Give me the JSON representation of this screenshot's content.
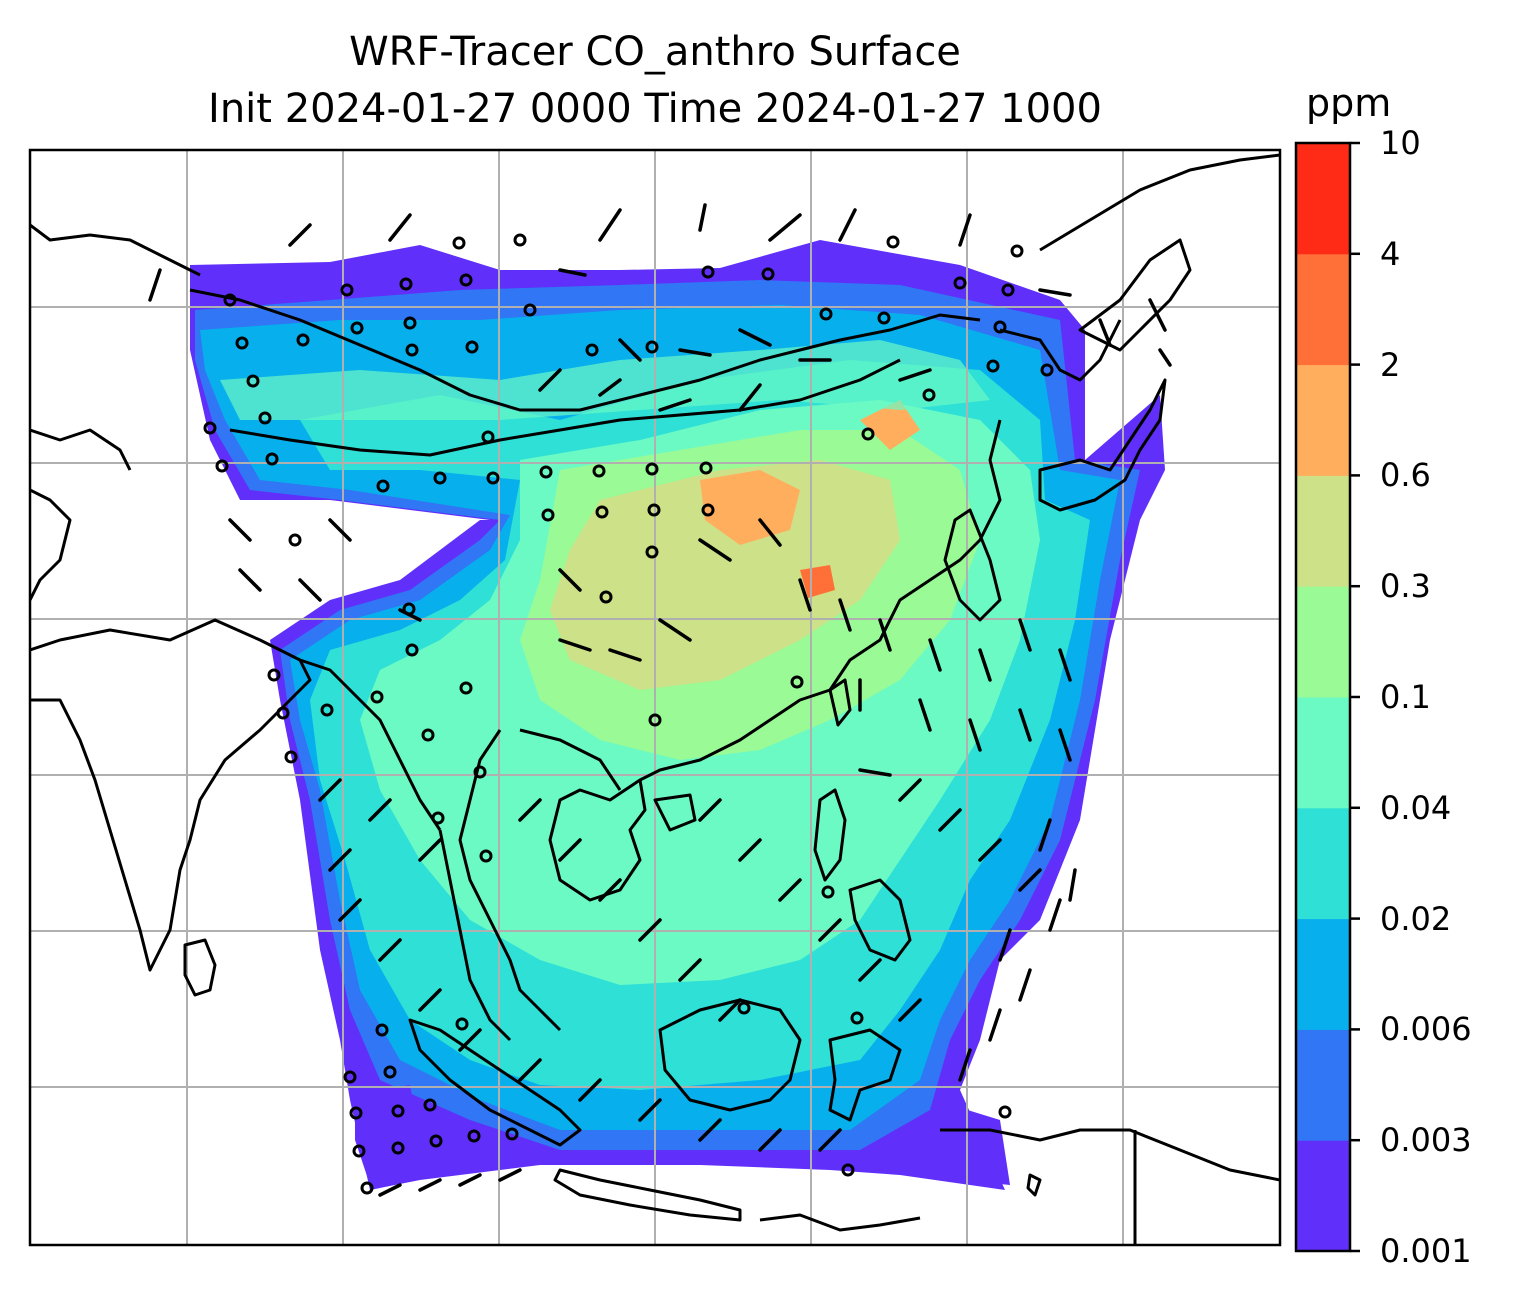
{
  "title": {
    "line1": "WRF-Tracer CO_anthro Surface",
    "line2": "Init 2024-01-27 0000 Time 2024-01-27 1000"
  },
  "colorbar": {
    "unit": "ppm",
    "levels": [
      "0.001",
      "0.003",
      "0.006",
      "0.02",
      "0.04",
      "0.1",
      "0.3",
      "0.6",
      "2",
      "4",
      "10"
    ],
    "colors": [
      "#6030fa",
      "#3076f5",
      "#07b0ec",
      "#2ee0d6",
      "#6bfac4",
      "#99fa96",
      "#cde188",
      "#ffae5d",
      "#ff7038",
      "#ff2b16"
    ]
  },
  "map": {
    "gridlines": true,
    "coastline_color": "#000000",
    "grid_color": "#b0b0b0",
    "wind_barbs": true
  }
}
